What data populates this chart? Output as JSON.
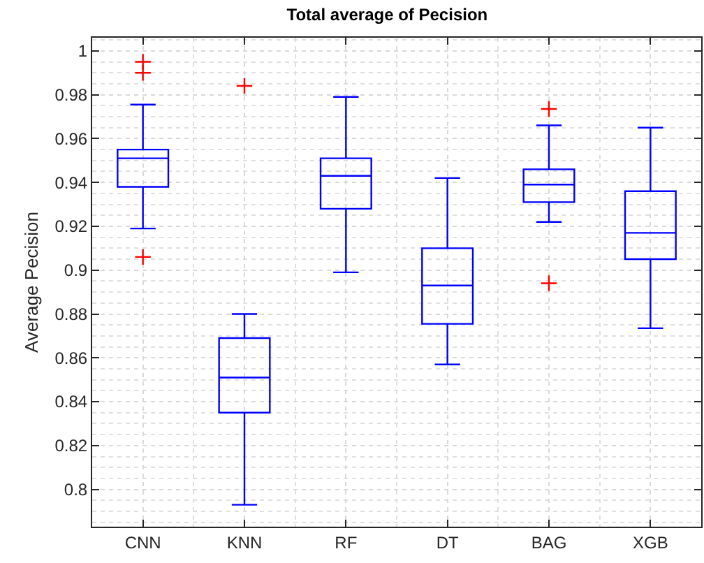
{
  "chart_data": {
    "type": "box",
    "title": "Total average of Pecision",
    "ylabel": "Average Pecision",
    "categories": [
      "CNN",
      "KNN",
      "RF",
      "DT",
      "BAG",
      "XGB"
    ],
    "ylim": [
      0.783,
      1.006
    ],
    "yticks": [
      0.8,
      0.82,
      0.84,
      0.86,
      0.88,
      0.9,
      0.92,
      0.94,
      0.96,
      0.98,
      1
    ],
    "grid": true,
    "series": [
      {
        "color": "#0000ff",
        "boxes": [
          {
            "low": 0.919,
            "q1": 0.938,
            "median": 0.951,
            "q3": 0.955,
            "high": 0.9755
          },
          {
            "low": 0.793,
            "q1": 0.835,
            "median": 0.851,
            "q3": 0.869,
            "high": 0.88
          },
          {
            "low": 0.899,
            "q1": 0.928,
            "median": 0.943,
            "q3": 0.951,
            "high": 0.979
          },
          {
            "low": 0.857,
            "q1": 0.8755,
            "median": 0.893,
            "q3": 0.91,
            "high": 0.942
          },
          {
            "low": 0.922,
            "q1": 0.931,
            "median": 0.939,
            "q3": 0.946,
            "high": 0.966
          },
          {
            "low": 0.8735,
            "q1": 0.905,
            "median": 0.917,
            "q3": 0.936,
            "high": 0.965
          }
        ]
      },
      {
        "type": "scatter",
        "color": "#ff0000",
        "marker": "cross",
        "x": [
          "CNN",
          "CNN",
          "CNN",
          "KNN",
          "BAG",
          "BAG"
        ],
        "values": [
          0.995,
          0.99,
          0.906,
          0.984,
          0.9735,
          0.894
        ]
      }
    ]
  }
}
